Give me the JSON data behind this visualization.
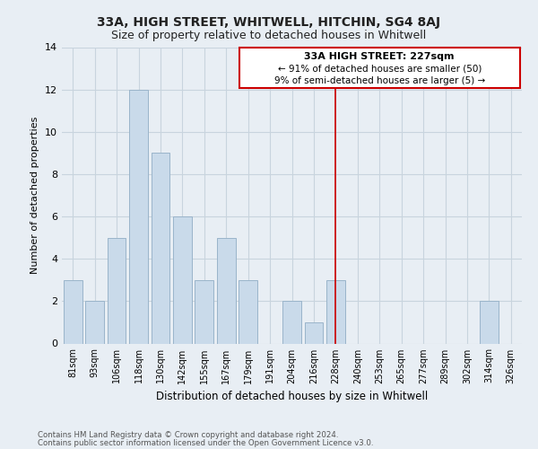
{
  "title": "33A, HIGH STREET, WHITWELL, HITCHIN, SG4 8AJ",
  "subtitle": "Size of property relative to detached houses in Whitwell",
  "xlabel": "Distribution of detached houses by size in Whitwell",
  "ylabel": "Number of detached properties",
  "footer_line1": "Contains HM Land Registry data © Crown copyright and database right 2024.",
  "footer_line2": "Contains public sector information licensed under the Open Government Licence v3.0.",
  "bin_labels": [
    "81sqm",
    "93sqm",
    "106sqm",
    "118sqm",
    "130sqm",
    "142sqm",
    "155sqm",
    "167sqm",
    "179sqm",
    "191sqm",
    "204sqm",
    "216sqm",
    "228sqm",
    "240sqm",
    "253sqm",
    "265sqm",
    "277sqm",
    "289sqm",
    "302sqm",
    "314sqm",
    "326sqm"
  ],
  "bar_heights": [
    3,
    2,
    5,
    12,
    9,
    6,
    3,
    5,
    3,
    0,
    2,
    1,
    3,
    0,
    0,
    0,
    0,
    0,
    0,
    2,
    0
  ],
  "bar_color": "#c9daea",
  "bar_edgecolor": "#9ab4ca",
  "vline_x_index": 12,
  "vline_color": "#cc0000",
  "ylim": [
    0,
    14
  ],
  "yticks": [
    0,
    2,
    4,
    6,
    8,
    10,
    12,
    14
  ],
  "annotation_title": "33A HIGH STREET: 227sqm",
  "annotation_line1": "← 91% of detached houses are smaller (50)",
  "annotation_line2": "9% of semi-detached houses are larger (5) →",
  "annotation_box_facecolor": "#ffffff",
  "annotation_border_color": "#cc0000",
  "grid_color": "#c8d4de",
  "bg_color": "#e8eef4",
  "title_fontsize": 10,
  "subtitle_fontsize": 9
}
